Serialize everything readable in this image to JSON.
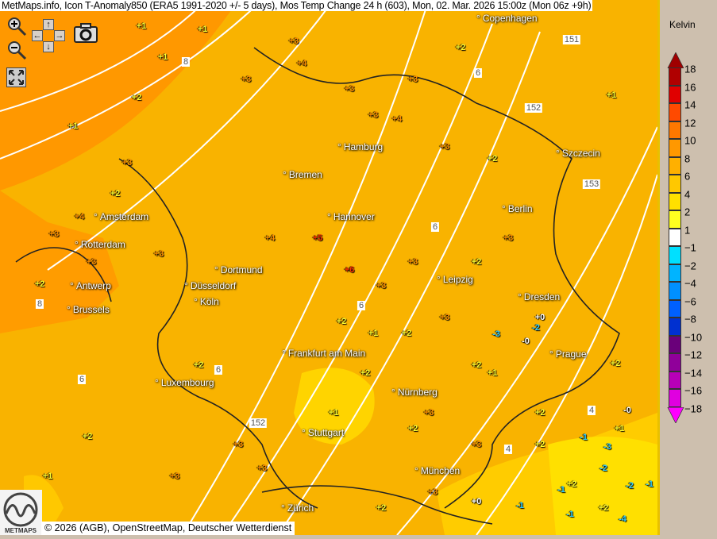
{
  "title": "MetMaps.info, Icon T-Anomaly850 (ERA5 1991-2020 +/- 5 days), Mos Temp Change 24 h (603), Mon, 02. Mar. 2026 15:00z (Mon 06z +9h)",
  "controls": {
    "zoom_in": "zoom-in-icon",
    "zoom_out": "zoom-out-icon",
    "pan": "pan-arrows-icon",
    "screenshot": "camera-icon",
    "fullscreen": "fullscreen-icon"
  },
  "copyright": "© 2026 (AGB), OpenStreetMap, Deutscher Wetterdienst",
  "logo_text": "METMAPS",
  "cities": [
    "Copenhagen",
    "Szczecin",
    "Hamburg",
    "Bremen",
    "Amsterdam",
    "Hannover",
    "Berlin",
    "Rotterdam",
    "Dortmund",
    "Düsseldorf",
    "Leipzig",
    "Antwerp",
    "Dresden",
    "Brussels",
    "Köln",
    "Frankfurt am Main",
    "Prague",
    "Luxembourg",
    "Nürnberg",
    "Stuttgart",
    "München",
    "Zürich"
  ],
  "isobars": [
    "8",
    "8",
    "6",
    "6",
    "4",
    "151",
    "152",
    "153",
    "152",
    "6",
    "6",
    "6",
    "4"
  ],
  "legend": {
    "unit": "Kelvin",
    "ticks": [
      "18",
      "16",
      "14",
      "12",
      "10",
      "8",
      "6",
      "4",
      "2",
      "1",
      "−1",
      "−2",
      "−4",
      "−6",
      "−8",
      "−10",
      "−12",
      "−14",
      "−16",
      "−18"
    ],
    "colors": [
      "#b00000",
      "#e00000",
      "#ff4a00",
      "#ff7800",
      "#ff9800",
      "#ffb000",
      "#ffc800",
      "#ffe000",
      "#ffff20",
      "#ffffff",
      "#00e0ff",
      "#00b4ff",
      "#0090ff",
      "#0060ff",
      "#0030d0",
      "#6a007a",
      "#90009a",
      "#b800b8",
      "#e000e0"
    ],
    "top_color": "#a00000",
    "bottom_color": "#ff00ff"
  },
  "values": [
    "+1",
    "+1",
    "+1",
    "+2",
    "+1",
    "+3",
    "+2",
    "+3",
    "+3",
    "+4",
    "+3",
    "+3",
    "+2",
    "+3",
    "+4",
    "+3",
    "+2",
    "+4",
    "+3",
    "+3",
    "+2",
    "+3",
    "+4",
    "+5",
    "+6",
    "+3",
    "+3",
    "+3",
    "+2",
    "+3",
    "+2",
    "+1",
    "+2",
    "+2",
    "+1",
    "+3",
    "+3",
    "+2",
    "+2",
    "+2",
    "+0",
    "+1",
    "+2",
    "+2",
    "+3",
    "+2",
    "+3",
    "+3",
    "+2",
    "+1",
    "-0",
    "+1",
    "-1",
    "-2",
    "-3",
    "-1",
    "-2",
    "-2",
    "-1",
    "-1",
    "-3",
    "-4",
    "-1",
    "-0",
    "+0",
    "+2",
    "+3",
    "+2",
    "+2",
    "+1"
  ]
}
